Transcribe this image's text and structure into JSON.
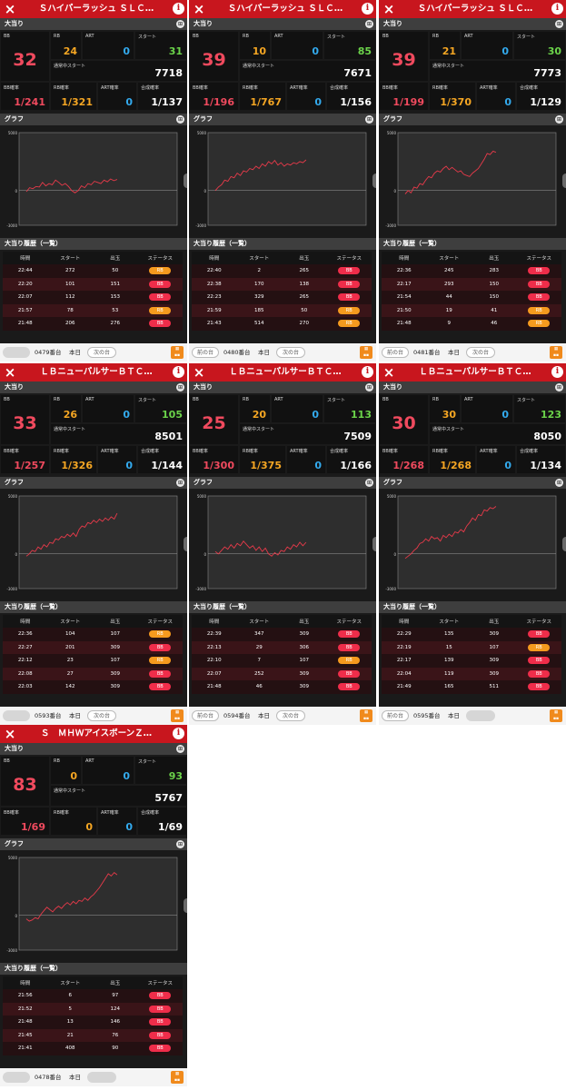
{
  "labels": {
    "big_hits": "大当り",
    "graph": "グラフ",
    "history": "大当り履歴（一覧）",
    "bb": "BB",
    "rb": "RB",
    "art": "ART",
    "start": "スタート",
    "cur_start": "通常中スタート",
    "bb_prob": "BB確率",
    "rb_prob": "RB確率",
    "art_prob": "ART確率",
    "total_prob": "合成確率",
    "col_time": "時間",
    "col_start": "スタート",
    "col_out": "出玉",
    "col_status": "ステータス",
    "y_top": "5000",
    "y_zero": "0",
    "y_bottom": "-3000",
    "prev": "前の台",
    "next": "次の台",
    "today": "本日",
    "close_icon": "×",
    "info_icon": "i",
    "grid_icon": "⊞"
  },
  "colors": {
    "accent_red": "#c8161e",
    "value_red": "#f04a5e",
    "value_orange": "#f5a623",
    "value_blue": "#33aaee",
    "value_green": "#6bd34a",
    "bb_pill": "#ef2d4a",
    "rb_pill": "#f59a1e"
  },
  "machines": [
    {
      "title": "Ｓハイパーラッシュ ＳＬＣ…",
      "bb": "32",
      "rb": "24",
      "art": "0",
      "start": "31",
      "cur_start": "7718",
      "bb_prob": "1/241",
      "rb_prob": "1/321",
      "art_prob": "0",
      "total_prob": "1/137",
      "history": [
        [
          "22:44",
          "272",
          "50",
          "RB"
        ],
        [
          "22:20",
          "101",
          "151",
          "BB"
        ],
        [
          "22:07",
          "112",
          "153",
          "BB"
        ],
        [
          "21:57",
          "78",
          "53",
          "RB"
        ],
        [
          "21:48",
          "206",
          "276",
          "BB"
        ]
      ],
      "graph": [
        -100,
        250,
        150,
        350,
        300,
        700,
        400,
        600,
        500,
        900,
        700,
        450,
        600,
        350,
        0,
        -200,
        0,
        400,
        250,
        600,
        500,
        800,
        700,
        600,
        900,
        750,
        1000,
        850,
        950
      ],
      "footer": {
        "number": "0479番台",
        "prev_enabled": false,
        "next_enabled": true
      }
    },
    {
      "title": "Ｓハイパーラッシュ ＳＬＣ…",
      "bb": "39",
      "rb": "10",
      "art": "0",
      "start": "85",
      "cur_start": "7671",
      "bb_prob": "1/196",
      "rb_prob": "1/767",
      "art_prob": "0",
      "total_prob": "1/156",
      "history": [
        [
          "22:40",
          "2",
          "265",
          "BB"
        ],
        [
          "22:38",
          "170",
          "138",
          "BB"
        ],
        [
          "22:23",
          "329",
          "265",
          "BB"
        ],
        [
          "21:59",
          "185",
          "50",
          "RB"
        ],
        [
          "21:43",
          "514",
          "270",
          "RB"
        ]
      ],
      "graph": [
        0,
        300,
        500,
        900,
        800,
        1200,
        1100,
        1500,
        1300,
        1700,
        1600,
        1900,
        1800,
        2100,
        1900,
        2300,
        2100,
        2500,
        2300,
        2600,
        2200,
        2400,
        2100,
        2300,
        2200,
        2400,
        2300,
        2500,
        2400,
        2650
      ],
      "footer": {
        "number": "0480番台",
        "prev_enabled": true,
        "next_enabled": true
      }
    },
    {
      "title": "Ｓハイパーラッシュ ＳＬＣ…",
      "bb": "39",
      "rb": "21",
      "art": "0",
      "start": "30",
      "cur_start": "7773",
      "bb_prob": "1/199",
      "rb_prob": "1/370",
      "art_prob": "0",
      "total_prob": "1/129",
      "history": [
        [
          "22:36",
          "245",
          "283",
          "BB"
        ],
        [
          "22:17",
          "293",
          "150",
          "BB"
        ],
        [
          "21:54",
          "44",
          "150",
          "BB"
        ],
        [
          "21:50",
          "19",
          "41",
          "RB"
        ],
        [
          "21:48",
          "9",
          "46",
          "RB"
        ]
      ],
      "graph": [
        -300,
        0,
        -200,
        300,
        200,
        600,
        500,
        900,
        1200,
        1100,
        1500,
        1700,
        1600,
        1900,
        2100,
        1800,
        2000,
        1800,
        1600,
        1700,
        1400,
        1300,
        1200,
        1500,
        1700,
        1900,
        2300,
        2700,
        3200,
        3100,
        3400,
        3300
      ],
      "footer": {
        "number": "0481番台",
        "prev_enabled": true,
        "next_enabled": true
      }
    },
    {
      "title": "ＬＢニューパルサーＢＴＣ…",
      "bb": "33",
      "rb": "26",
      "art": "0",
      "start": "105",
      "cur_start": "8501",
      "bb_prob": "1/257",
      "rb_prob": "1/326",
      "art_prob": "0",
      "total_prob": "1/144",
      "history": [
        [
          "22:36",
          "104",
          "107",
          "RB"
        ],
        [
          "22:27",
          "201",
          "309",
          "BB"
        ],
        [
          "22:12",
          "23",
          "107",
          "RB"
        ],
        [
          "22:08",
          "27",
          "309",
          "BB"
        ],
        [
          "22:03",
          "142",
          "309",
          "BB"
        ]
      ],
      "graph": [
        -200,
        0,
        300,
        200,
        600,
        400,
        800,
        600,
        1000,
        900,
        1300,
        1200,
        1500,
        1400,
        1700,
        1500,
        1800,
        1500,
        2100,
        2400,
        2300,
        2700,
        2600,
        2900,
        2700,
        3000,
        2800,
        3100,
        2900,
        3200,
        3000,
        3500
      ],
      "footer": {
        "number": "0593番台",
        "prev_enabled": false,
        "next_enabled": true
      }
    },
    {
      "title": "ＬＢニューパルサーＢＴＣ…",
      "bb": "25",
      "rb": "20",
      "art": "0",
      "start": "113",
      "cur_start": "7509",
      "bb_prob": "1/300",
      "rb_prob": "1/375",
      "art_prob": "0",
      "total_prob": "1/166",
      "history": [
        [
          "22:39",
          "347",
          "309",
          "BB"
        ],
        [
          "22:13",
          "29",
          "306",
          "BB"
        ],
        [
          "22:10",
          "7",
          "107",
          "RB"
        ],
        [
          "22:07",
          "252",
          "309",
          "BB"
        ],
        [
          "21:48",
          "46",
          "309",
          "BB"
        ]
      ],
      "graph": [
        200,
        0,
        300,
        600,
        400,
        800,
        500,
        900,
        700,
        1100,
        800,
        500,
        700,
        300,
        600,
        200,
        500,
        0,
        -200,
        100,
        -100,
        300,
        200,
        600,
        400,
        800,
        600,
        1000,
        700,
        1000
      ],
      "footer": {
        "number": "0594番台",
        "prev_enabled": true,
        "next_enabled": true
      }
    },
    {
      "title": "ＬＢニューパルサーＢＴＣ…",
      "bb": "30",
      "rb": "30",
      "art": "0",
      "start": "123",
      "cur_start": "8050",
      "bb_prob": "1/268",
      "rb_prob": "1/268",
      "art_prob": "0",
      "total_prob": "1/134",
      "history": [
        [
          "22:29",
          "135",
          "309",
          "BB"
        ],
        [
          "22:19",
          "15",
          "107",
          "RB"
        ],
        [
          "22:17",
          "139",
          "309",
          "BB"
        ],
        [
          "22:04",
          "119",
          "309",
          "BB"
        ],
        [
          "21:49",
          "165",
          "511",
          "BB"
        ]
      ],
      "graph": [
        -400,
        -200,
        0,
        300,
        500,
        900,
        1000,
        1300,
        1100,
        1500,
        1300,
        1400,
        1100,
        1600,
        1400,
        1700,
        1500,
        1900,
        1800,
        2100,
        1900,
        2400,
        2700,
        3100,
        2900,
        3400,
        3300,
        3800,
        3700,
        4000,
        3900,
        4100
      ],
      "footer": {
        "number": "0595番台",
        "prev_enabled": true,
        "next_enabled": false
      }
    },
    {
      "title": "Ｓ　ＭＨＷアイスボーンＺ…",
      "bb": "83",
      "rb": "0",
      "art": "0",
      "start": "93",
      "cur_start": "5767",
      "bb_prob": "1/69",
      "rb_prob": "0",
      "art_prob": "0",
      "total_prob": "1/69",
      "history": [
        [
          "21:56",
          "6",
          "97",
          "BB"
        ],
        [
          "21:52",
          "5",
          "124",
          "BB"
        ],
        [
          "21:48",
          "13",
          "146",
          "BB"
        ],
        [
          "21:45",
          "21",
          "76",
          "BB"
        ],
        [
          "21:41",
          "408",
          "90",
          "BB"
        ]
      ],
      "graph": [
        -300,
        -500,
        -400,
        -200,
        -300,
        100,
        400,
        700,
        500,
        300,
        600,
        800,
        600,
        900,
        1100,
        900,
        1200,
        1000,
        1300,
        1200,
        1500,
        1300,
        1600,
        1800,
        2100,
        2400,
        2800,
        3200,
        3600,
        3400,
        3700,
        3500
      ],
      "footer": {
        "number": "0478番台",
        "prev_enabled": false,
        "next_enabled": false
      }
    }
  ]
}
